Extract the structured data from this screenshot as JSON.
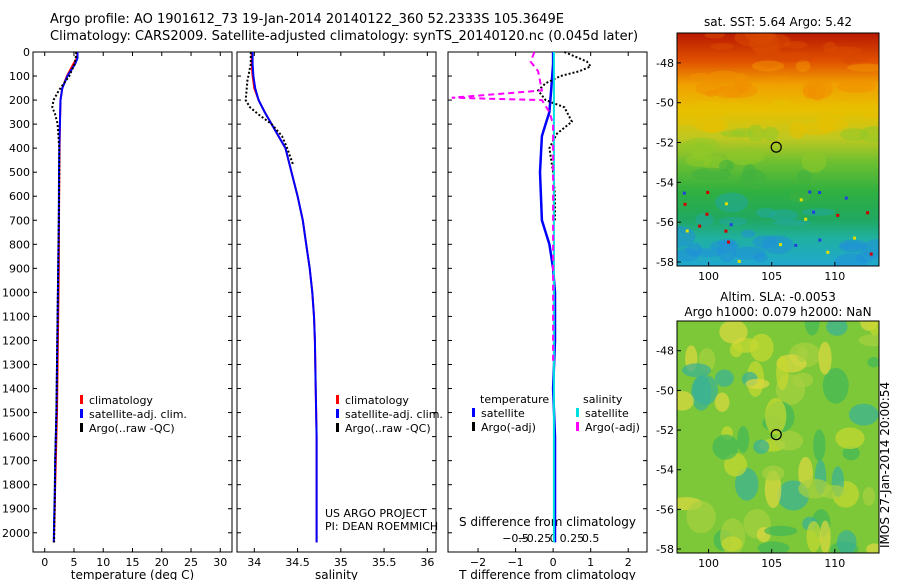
{
  "header": {
    "line1": "Argo profile: AO 1901612_73 19-Jan-2014 20140122_360 52.2333S 105.3649E",
    "line2": "Climatology: CARS2009. Satellite-adjusted climatology: synTS_20140120.nc (0.045d later)"
  },
  "colors": {
    "climatology": "#ff0000",
    "satellite_adj": "#0000ff",
    "argo_raw": "#000000",
    "salinity_sat": "#00e0e0",
    "salinity_argo": "#ff00ff"
  },
  "depth_ticks": [
    0,
    100,
    200,
    300,
    400,
    500,
    600,
    700,
    800,
    900,
    1000,
    1100,
    1200,
    1300,
    1400,
    1500,
    1600,
    1700,
    1800,
    1900,
    2000
  ],
  "chart_data": [
    {
      "id": "temperature",
      "type": "line",
      "xlabel": "temperature (deg C)",
      "xlim": [
        -2,
        32
      ],
      "ylim": [
        0,
        2080
      ],
      "y_inverted": true,
      "xticks": [
        0,
        5,
        10,
        15,
        20,
        25,
        30
      ],
      "legend": [
        "climatology",
        "satellite-adj. clim.",
        "Argo(..raw -QC)"
      ],
      "series": [
        {
          "name": "climatology",
          "x": [
            5.6,
            5.5,
            4.9,
            3.8,
            3.0,
            2.7,
            2.6,
            2.55,
            2.5,
            2.45,
            2.4,
            2.3,
            2.2,
            2.1,
            2.0,
            1.9,
            1.8,
            1.75,
            1.7,
            1.65,
            1.6,
            1.55
          ],
          "y": [
            0,
            25,
            50,
            100,
            150,
            200,
            300,
            400,
            500,
            700,
            900,
            1100,
            1300,
            1500,
            1600,
            1700,
            1800,
            1850,
            1900,
            1950,
            2000,
            2040
          ]
        },
        {
          "name": "satellite-adj. clim.",
          "x": [
            5.6,
            5.6,
            5.2,
            3.9,
            3.0,
            2.7,
            2.6,
            2.5,
            2.45,
            2.4,
            2.3,
            2.2,
            2.1,
            2.0,
            1.9,
            1.8,
            1.75,
            1.7,
            1.65,
            1.6,
            1.55
          ],
          "y": [
            0,
            25,
            50,
            100,
            150,
            200,
            300,
            400,
            500,
            700,
            900,
            1100,
            1300,
            1500,
            1600,
            1700,
            1800,
            1850,
            1900,
            1950,
            2040
          ]
        },
        {
          "name": "Argo(..raw -QC)",
          "x": [
            5.4,
            5.3,
            5.1,
            4.2,
            2.4,
            1.5,
            1.3,
            1.8,
            2.2,
            2.5,
            2.5,
            2.4,
            2.3,
            2.2,
            2.1,
            2.0,
            1.9,
            1.8,
            1.75,
            1.7,
            1.65,
            1.6
          ],
          "y": [
            0,
            25,
            50,
            100,
            160,
            200,
            230,
            260,
            300,
            400,
            500,
            700,
            900,
            1100,
            1300,
            1500,
            1600,
            1700,
            1800,
            1900,
            1950,
            2040
          ]
        }
      ]
    },
    {
      "id": "salinity",
      "type": "line",
      "xlabel": "salinity",
      "xlim": [
        33.8,
        36.1
      ],
      "ylim": [
        0,
        2080
      ],
      "y_inverted": true,
      "xticks": [
        34,
        34.5,
        35,
        35.5,
        36
      ],
      "xtick_labels": [
        "34",
        "34.5",
        "35",
        "35.5",
        "36"
      ],
      "legend": [
        "climatology",
        "satellite-adj. clim.",
        "Argo(..raw -QC)"
      ],
      "annotation": [
        "US ARGO PROJECT",
        "PI: DEAN ROEMMICH"
      ],
      "series": [
        {
          "name": "climatology",
          "x": [
            33.97,
            33.97,
            33.98,
            34.0,
            34.05,
            34.12,
            34.2,
            34.28,
            34.36,
            34.43,
            34.5,
            34.56,
            34.6,
            34.64,
            34.67,
            34.69,
            34.7,
            34.71,
            34.72,
            34.72,
            34.72
          ],
          "y": [
            0,
            50,
            100,
            150,
            200,
            250,
            300,
            350,
            400,
            500,
            600,
            700,
            800,
            900,
            1000,
            1100,
            1200,
            1400,
            1600,
            1800,
            2040
          ]
        },
        {
          "name": "satellite-adj. clim.",
          "x": [
            33.98,
            33.98,
            33.99,
            34.01,
            34.05,
            34.12,
            34.2,
            34.28,
            34.36,
            34.43,
            34.5,
            34.56,
            34.6,
            34.64,
            34.67,
            34.69,
            34.7,
            34.71,
            34.72,
            34.72,
            34.72
          ],
          "y": [
            0,
            50,
            100,
            150,
            200,
            250,
            300,
            350,
            400,
            500,
            600,
            700,
            800,
            900,
            1000,
            1100,
            1200,
            1400,
            1600,
            1800,
            2040
          ]
        },
        {
          "name": "Argo(..raw -QC)",
          "x": [
            33.96,
            33.96,
            33.92,
            33.9,
            33.95,
            34.05,
            34.2,
            34.32,
            34.38,
            34.45
          ],
          "y": [
            0,
            50,
            120,
            200,
            230,
            260,
            300,
            350,
            400,
            470
          ]
        }
      ]
    },
    {
      "id": "difference",
      "type": "line",
      "xlabel": "T difference from climatology",
      "xlabel_top": "S difference from climatology",
      "xlim": [
        -2.8,
        2.5
      ],
      "ylim": [
        0,
        2080
      ],
      "y_inverted": true,
      "xticks": [
        -2,
        -1,
        0,
        1,
        2
      ],
      "xtick_labels": [
        "−2",
        "−1",
        "0",
        "1",
        "2"
      ],
      "sticks": [
        -1,
        -0.5,
        0,
        0.5,
        1
      ],
      "stick_labels": [
        "−0.5",
        "−0.25",
        "0",
        "0.25",
        "0.5"
      ],
      "legend_titles": [
        "temperature",
        "salinity"
      ],
      "legend": [
        "satellite",
        "Argo(-adj)",
        "satellite",
        "Argo(-adj)"
      ],
      "series": [
        {
          "name": "temperature satellite",
          "x": [
            0,
            0,
            -0.05,
            -0.1,
            -0.2,
            -0.3,
            -0.35,
            -0.3,
            -0.1,
            0,
            0.05,
            0.05,
            0.0,
            0.05,
            0.05,
            0.05,
            0.05
          ],
          "y": [
            0,
            50,
            150,
            250,
            300,
            350,
            500,
            700,
            800,
            900,
            1000,
            1200,
            1400,
            1600,
            1800,
            1950,
            2040
          ]
        },
        {
          "name": "temperature Argo(-adj)",
          "x": [
            0.3,
            0.6,
            0.9,
            1.0,
            0.7,
            0.2,
            -0.2,
            -0.4,
            -0.2,
            0.3,
            0.5,
            0.1,
            -0.1,
            0,
            0.05,
            0.05
          ],
          "y": [
            0,
            20,
            40,
            60,
            80,
            100,
            130,
            160,
            200,
            230,
            290,
            340,
            400,
            500,
            600,
            700
          ]
        },
        {
          "name": "salinity satellite",
          "x": [
            0.02,
            0.02,
            0.02,
            0.02,
            0.02,
            0.02,
            0.02,
            0.02,
            0.02
          ],
          "y": [
            0,
            200,
            400,
            800,
            1000,
            1200,
            1500,
            1800,
            2040
          ]
        },
        {
          "name": "salinity Argo(-adj)",
          "x": [
            -0.5,
            -0.6,
            -0.4,
            -0.3,
            -2.7,
            -0.3,
            -0.1,
            0,
            0,
            0
          ],
          "y": [
            0,
            40,
            80,
            160,
            190,
            200,
            250,
            300,
            400,
            1300
          ]
        }
      ]
    },
    {
      "id": "sst_map",
      "type": "heatmap",
      "title": "sat. SST: 5.64  Argo: 5.42",
      "xlim": [
        97.5,
        113.5
      ],
      "ylim": [
        -58.2,
        -46.5
      ],
      "xticks": [
        100,
        105,
        110
      ],
      "yticks": [
        -48,
        -50,
        -52,
        -54,
        -56,
        -58
      ],
      "marker": {
        "x": 105.36,
        "y": -52.23
      }
    },
    {
      "id": "sla_map",
      "type": "heatmap",
      "title": [
        "Altim. SLA: -0.0053",
        "Argo h1000: 0.079  h2000: NaN"
      ],
      "xlim": [
        97.5,
        113.5
      ],
      "ylim": [
        -58.2,
        -46.5
      ],
      "xticks": [
        100,
        105,
        110
      ],
      "yticks": [
        -48,
        -50,
        -52,
        -54,
        -56,
        -58
      ],
      "marker": {
        "x": 105.36,
        "y": -52.23
      }
    }
  ],
  "side_label": "IMOS 27-Jan-2014 20:00:54"
}
